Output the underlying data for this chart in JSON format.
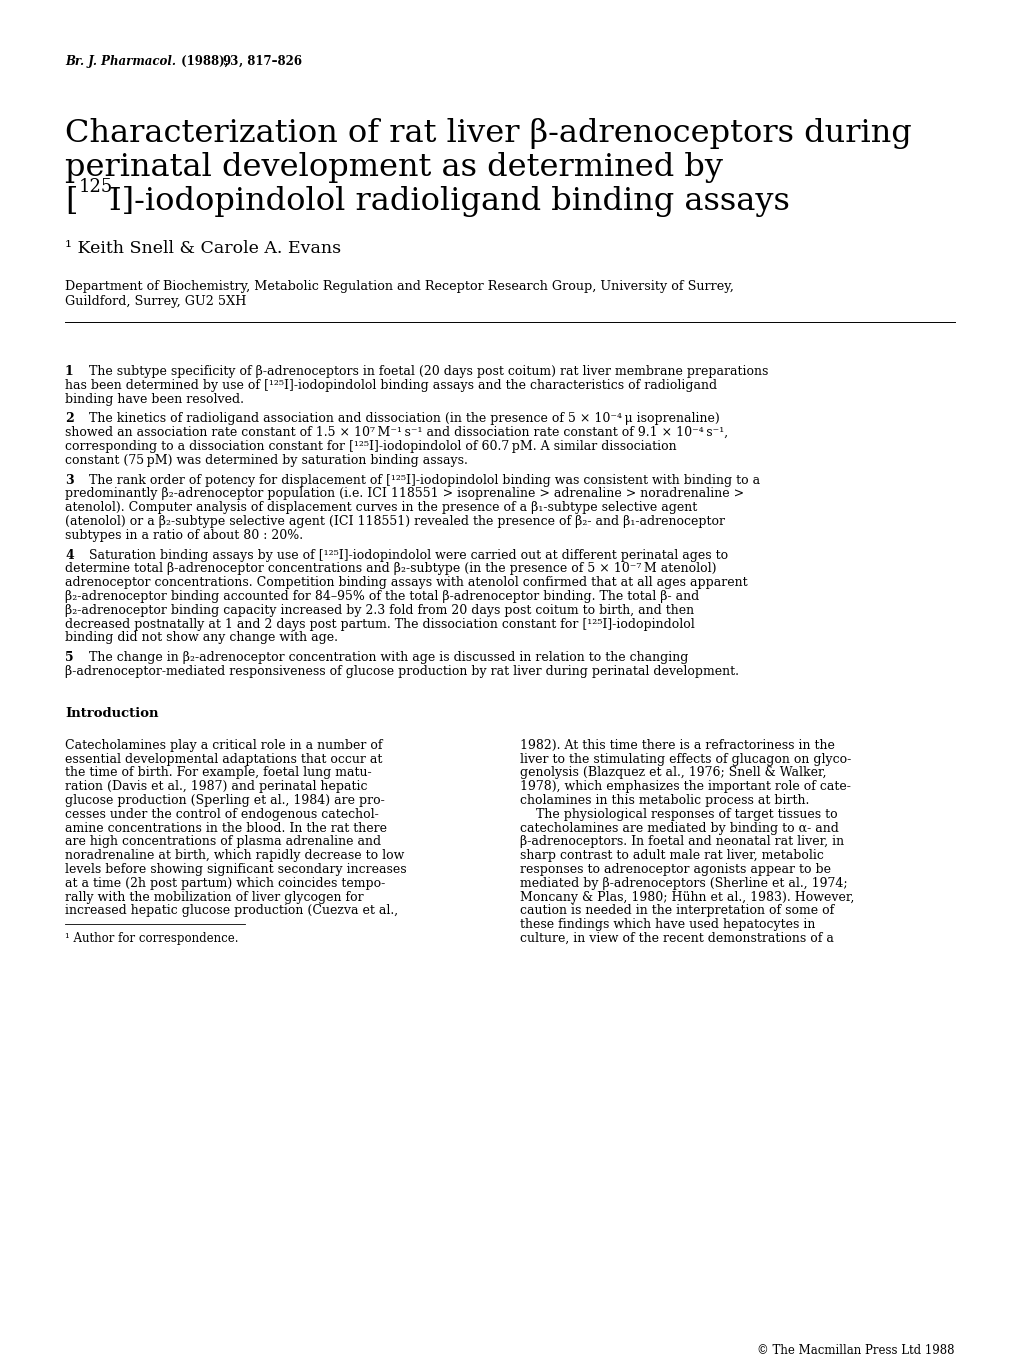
{
  "background_color": "#ffffff",
  "journal_ref_italic": "Br. J. Pharmacol.",
  "journal_ref_normal": " (1988), ",
  "journal_ref_bold": "93",
  "journal_ref_end": ", 817–826",
  "title_line1": "Characterization of rat liver β-adrenoceptors during",
  "title_line2": "perinatal development as determined by",
  "title_line3": "[",
  "title_line3_sup": "125",
  "title_line3_rest": "I]-iodopindolol radioligand binding assays",
  "authors": "¹ Keith Snell & Carole A. Evans",
  "affiliation_line1": "Department of Biochemistry, Metabolic Regulation and Receptor Research Group, University of Surrey,",
  "affiliation_line2": "Guildford, Surrey, GU2 5XH",
  "abstract_numbers": [
    "1",
    "2",
    "3",
    "4",
    "5"
  ],
  "abstract_paragraphs": [
    "The subtype specificity of β-adrenoceptors in foetal (20 days post coitum) rat liver membrane preparations has been determined by use of [¹²⁵I]-iodopindolol binding assays and the characteristics of radioligand binding have been resolved.",
    "The kinetics of radioligand association and dissociation (in the presence of 5 × 10⁻⁴ μ isoprenaline) showed an association rate constant of 1.5 × 10⁷ M⁻¹ s⁻¹ and dissociation rate constant of 9.1 × 10⁻⁴ s⁻¹, corresponding to a dissociation constant for [¹²⁵I]-iodopindolol of 60.7 pM. A similar dissociation constant (75 pM) was determined by saturation binding assays.",
    "The rank order of potency for displacement of [¹²⁵I]-iodopindolol binding was consistent with binding to a predominantly β₂-adrenoceptor population (i.e. ICI 118551 > isoprenaline > adrenaline > noradrenaline > atenolol). Computer analysis of displacement curves in the presence of a β₁-subtype selective agent (atenolol) or a β₂-subtype selective agent (ICI 118551) revealed the presence of β₂- and β₁-adrenoceptor subtypes in a ratio of about 80 : 20%.",
    "Saturation binding assays by use of [¹²⁵I]-iodopindolol were carried out at different perinatal ages to determine total β-adrenoceptor concentrations and β₂-subtype (in the presence of 5 × 10⁻⁷ M atenolol) adrenoceptor concentrations. Competition binding assays with atenolol confirmed that at all ages apparent β₂-adrenoceptor binding accounted for 84–95% of the total β-adrenoceptor binding. The total β- and β₂-adrenoceptor binding capacity increased by 2.3 fold from 20 days post coitum to birth, and then decreased postnatally at 1 and 2 days post partum. The dissociation constant for [¹²⁵I]-iodopindolol binding did not show any change with age.",
    "The change in β₂-adrenoceptor concentration with age is discussed in relation to the changing β-adrenoceptor-mediated responsiveness of glucose production by rat liver during perinatal development."
  ],
  "intro_header": "Introduction",
  "intro_col1_lines": [
    "Catecholamines play a critical role in a number of",
    "essential developmental adaptations that occur at",
    "the time of birth. For example, foetal lung matu-",
    "ration (Davis et al., 1987) and perinatal hepatic",
    "glucose production (Sperling et al., 1984) are pro-",
    "cesses under the control of endogenous catechol-",
    "amine concentrations in the blood. In the rat there",
    "are high concentrations of plasma adrenaline and",
    "noradrenaline at birth, which rapidly decrease to low",
    "levels before showing significant secondary increases",
    "at a time (2h post partum) which coincides tempo-",
    "rally with the mobilization of liver glycogen for",
    "increased hepatic glucose production (Cuezva et al.,"
  ],
  "intro_col1_italic_words": [
    "et al.",
    "et al.",
    "post partum",
    "et al."
  ],
  "intro_col2_lines": [
    "1982). At this time there is a refractoriness in the",
    "liver to the stimulating effects of glucagon on glyco-",
    "genolysis (Blazquez et al., 1976; Snell & Walker,",
    "1978), which emphasizes the important role of cate-",
    "cholamines in this metabolic process at birth.",
    "    The physiological responses of target tissues to",
    "catecholamines are mediated by binding to α- and",
    "β-adrenoceptors. In foetal and neonatal rat liver, in",
    "sharp contrast to adult male rat liver, metabolic",
    "responses to adrenoceptor agonists appear to be",
    "mediated by β-adrenoceptors (Sherline et al., 1974;",
    "Moncany & Plas, 1980; Hühn et al., 1983). However,",
    "caution is needed in the interpretation of some of",
    "these findings which have used hepatocytes in",
    "culture, in view of the recent demonstrations of a"
  ],
  "footnote": "¹ Author for correspondence.",
  "copyright": "© The Macmillan Press Ltd 1988"
}
